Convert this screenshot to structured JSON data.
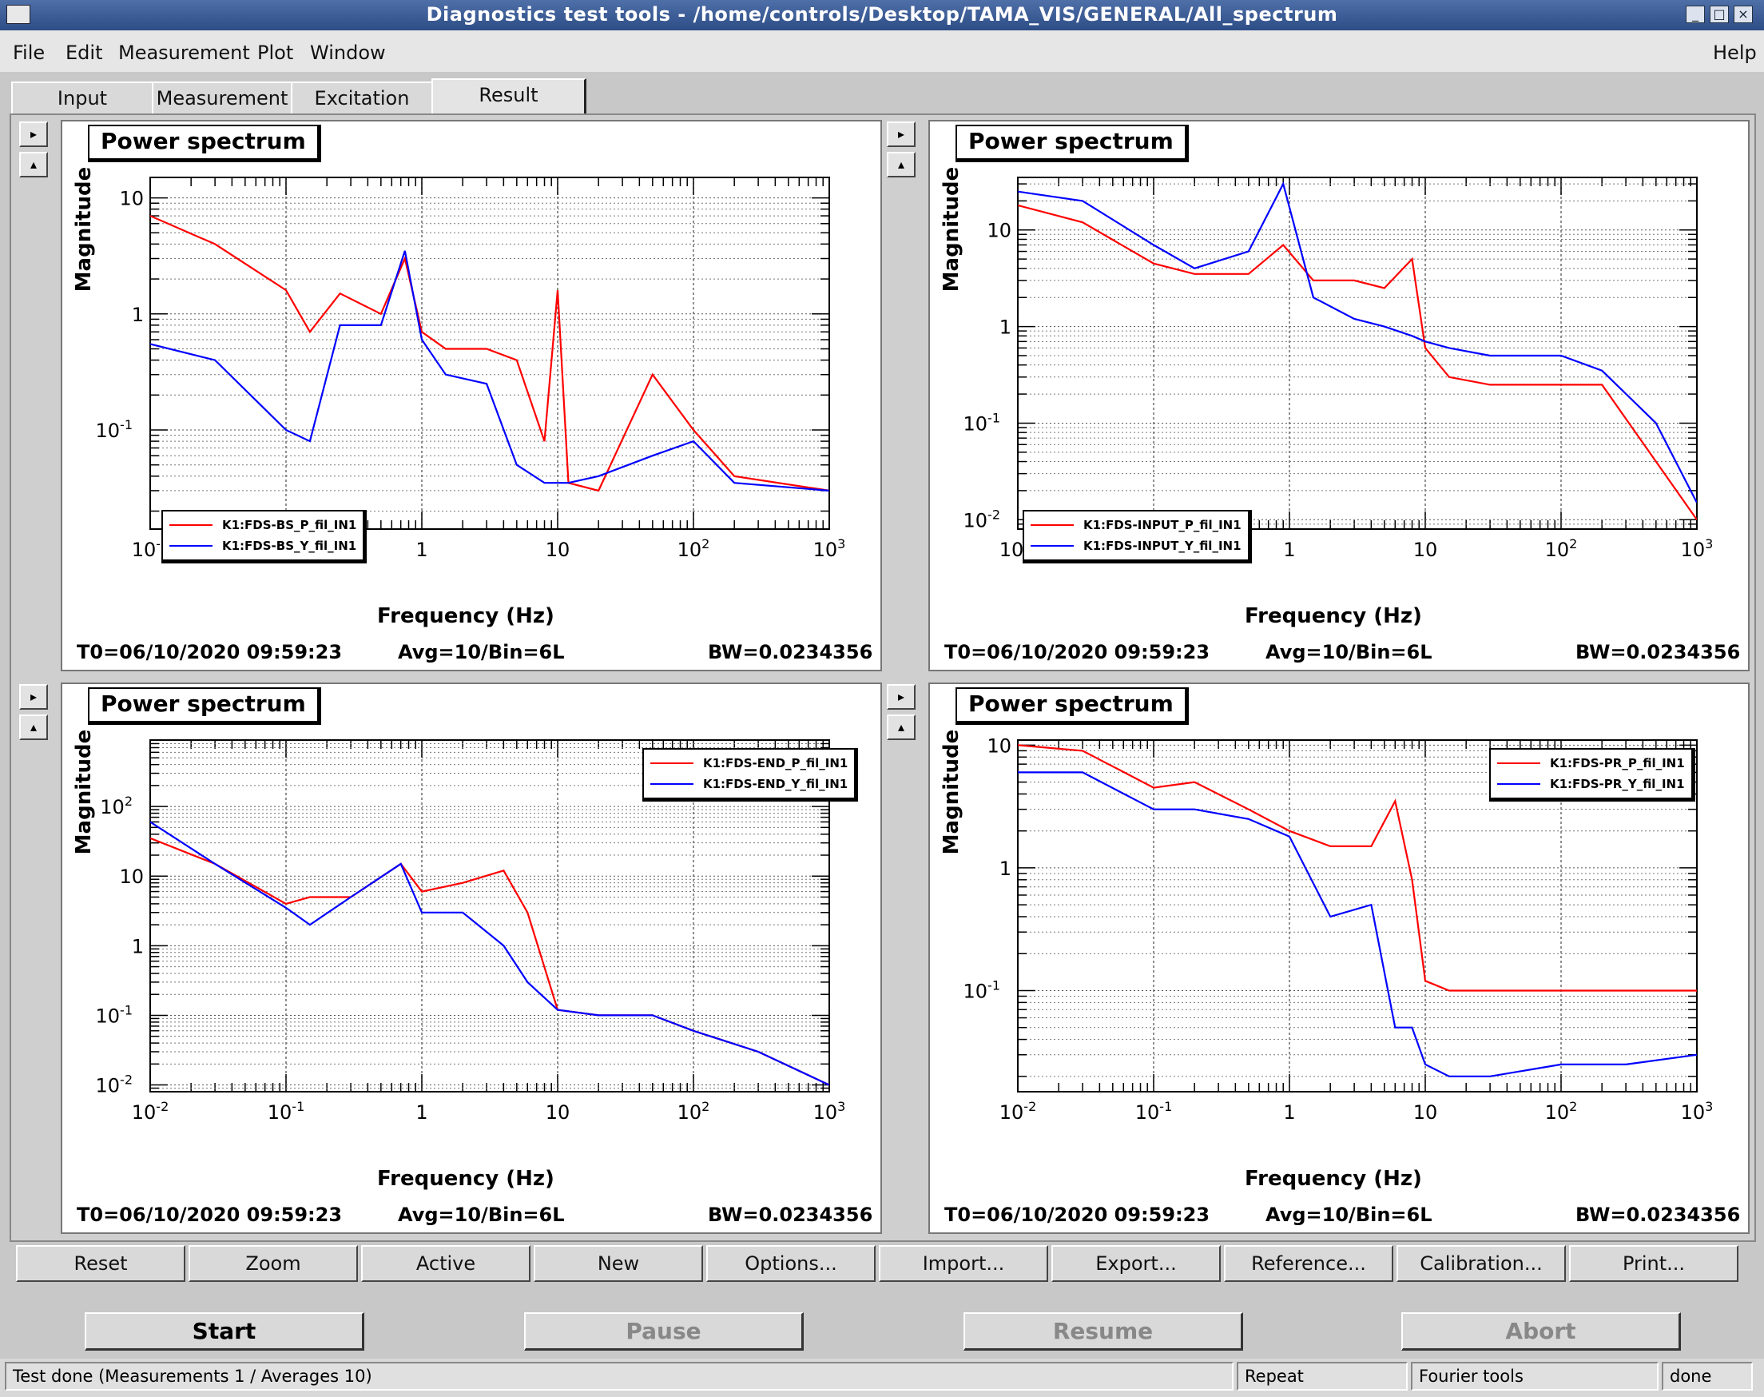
{
  "window": {
    "title": "Diagnostics test tools - /home/controls/Desktop/TAMA_VIS/GENERAL/All_spectrum"
  },
  "menu": {
    "file": "File",
    "edit": "Edit",
    "measurement": "Measurement",
    "plot": "Plot",
    "window": "Window",
    "help": "Help"
  },
  "tabs": [
    "Input",
    "Measurement",
    "Excitation",
    "Result"
  ],
  "panel_common": {
    "title": "Power spectrum",
    "xlabel": "Frequency (Hz)",
    "ylabel": "Magnitude",
    "t0": "T0=06/10/2020 09:59:23",
    "avg": "Avg=10/Bin=6L",
    "bw": "BW=0.0234356"
  },
  "panels": [
    {
      "legend": [
        "K1:FDS-BS_P_fil_IN1",
        "K1:FDS-BS_Y_fil_IN1"
      ]
    },
    {
      "legend": [
        "K1:FDS-INPUT_P_fil_IN1",
        "K1:FDS-INPUT_Y_fil_IN1"
      ]
    },
    {
      "legend": [
        "K1:FDS-END_P_fil_IN1",
        "K1:FDS-END_Y_fil_IN1"
      ]
    },
    {
      "legend": [
        "K1:FDS-PR_P_fil_IN1",
        "K1:FDS-PR_Y_fil_IN1"
      ]
    }
  ],
  "colors": {
    "series_p": "#ff0000",
    "series_y": "#0000ff"
  },
  "chart_data": [
    {
      "type": "line",
      "title": "Power spectrum",
      "xlabel": "Frequency (Hz)",
      "ylabel": "Magnitude",
      "xscale": "log",
      "yscale": "log",
      "xlim": [
        0.01,
        1000
      ],
      "ylim": [
        0.014,
        15
      ],
      "grid": true,
      "legend_position": "bottom-left",
      "x": [
        0.01,
        0.03,
        0.1,
        0.15,
        0.25,
        0.5,
        0.75,
        1,
        1.5,
        3,
        5,
        8,
        10,
        12,
        20,
        50,
        100,
        200,
        1000
      ],
      "series": [
        {
          "name": "K1:FDS-BS_P_fil_IN1",
          "values": [
            7,
            4,
            1.6,
            0.7,
            1.5,
            1.0,
            3.0,
            0.7,
            0.5,
            0.5,
            0.4,
            0.08,
            1.6,
            0.035,
            0.03,
            0.3,
            0.1,
            0.04,
            0.03
          ]
        },
        {
          "name": "K1:FDS-BS_Y_fil_IN1",
          "values": [
            0.55,
            0.4,
            0.1,
            0.08,
            0.8,
            0.8,
            3.5,
            0.6,
            0.3,
            0.25,
            0.05,
            0.035,
            0.035,
            0.035,
            0.04,
            0.06,
            0.08,
            0.035,
            0.03
          ]
        }
      ]
    },
    {
      "type": "line",
      "title": "Power spectrum",
      "xlabel": "Frequency (Hz)",
      "ylabel": "Magnitude",
      "xscale": "log",
      "yscale": "log",
      "xlim": [
        0.01,
        1000
      ],
      "ylim": [
        0.008,
        35
      ],
      "grid": true,
      "legend_position": "bottom-left",
      "x": [
        0.01,
        0.03,
        0.1,
        0.2,
        0.5,
        0.9,
        1.5,
        3,
        5,
        8,
        10,
        15,
        30,
        100,
        200,
        500,
        1000
      ],
      "series": [
        {
          "name": "K1:FDS-INPUT_P_fil_IN1",
          "values": [
            18,
            12,
            4.5,
            3.5,
            3.5,
            7,
            3,
            3,
            2.5,
            5,
            0.6,
            0.3,
            0.25,
            0.25,
            0.25,
            0.04,
            0.01
          ]
        },
        {
          "name": "K1:FDS-INPUT_Y_fil_IN1",
          "values": [
            25,
            20,
            7,
            4,
            6,
            30,
            2,
            1.2,
            1,
            0.8,
            0.7,
            0.6,
            0.5,
            0.5,
            0.35,
            0.1,
            0.015
          ]
        }
      ]
    },
    {
      "type": "line",
      "title": "Power spectrum",
      "xlabel": "Frequency (Hz)",
      "ylabel": "Magnitude",
      "xscale": "log",
      "yscale": "log",
      "xlim": [
        0.01,
        1000
      ],
      "ylim": [
        0.008,
        900
      ],
      "grid": true,
      "legend_position": "top-right",
      "x": [
        0.01,
        0.03,
        0.1,
        0.15,
        0.3,
        0.7,
        1,
        2,
        4,
        6,
        10,
        20,
        50,
        100,
        300,
        1000
      ],
      "series": [
        {
          "name": "K1:FDS-END_P_fil_IN1",
          "values": [
            35,
            15,
            4,
            5,
            5,
            15,
            6,
            8,
            12,
            3,
            0.12,
            0.1,
            0.1,
            0.06,
            0.03,
            0.01
          ]
        },
        {
          "name": "K1:FDS-END_Y_fil_IN1",
          "values": [
            60,
            15,
            3.5,
            2,
            5,
            15,
            3,
            3,
            1,
            0.3,
            0.12,
            0.1,
            0.1,
            0.06,
            0.03,
            0.01
          ]
        }
      ]
    },
    {
      "type": "line",
      "title": "Power spectrum",
      "xlabel": "Frequency (Hz)",
      "ylabel": "Magnitude",
      "xscale": "log",
      "yscale": "log",
      "xlim": [
        0.01,
        1000
      ],
      "ylim": [
        0.015,
        11
      ],
      "grid": true,
      "legend_position": "top-right",
      "x": [
        0.01,
        0.03,
        0.1,
        0.2,
        0.5,
        1,
        2,
        4,
        6,
        8,
        10,
        15,
        30,
        100,
        300,
        1000
      ],
      "series": [
        {
          "name": "K1:FDS-PR_P_fil_IN1",
          "values": [
            10,
            9,
            4.5,
            5,
            3,
            2,
            1.5,
            1.5,
            3.5,
            0.8,
            0.12,
            0.1,
            0.1,
            0.1,
            0.1,
            0.1
          ]
        },
        {
          "name": "K1:FDS-PR_Y_fil_IN1",
          "values": [
            6,
            6,
            3,
            3,
            2.5,
            1.8,
            0.4,
            0.5,
            0.05,
            0.05,
            0.025,
            0.02,
            0.02,
            0.025,
            0.025,
            0.03
          ]
        }
      ]
    }
  ],
  "toolbar": [
    "Reset",
    "Zoom",
    "Active",
    "New",
    "Options...",
    "Import...",
    "Export...",
    "Reference...",
    "Calibration...",
    "Print..."
  ],
  "controls": {
    "start": "Start",
    "pause": "Pause",
    "resume": "Resume",
    "abort": "Abort"
  },
  "status": {
    "message": "Test done (Measurements 1 / Averages 10)",
    "repeat": "Repeat",
    "fourier": "Fourier tools",
    "state": "done"
  }
}
